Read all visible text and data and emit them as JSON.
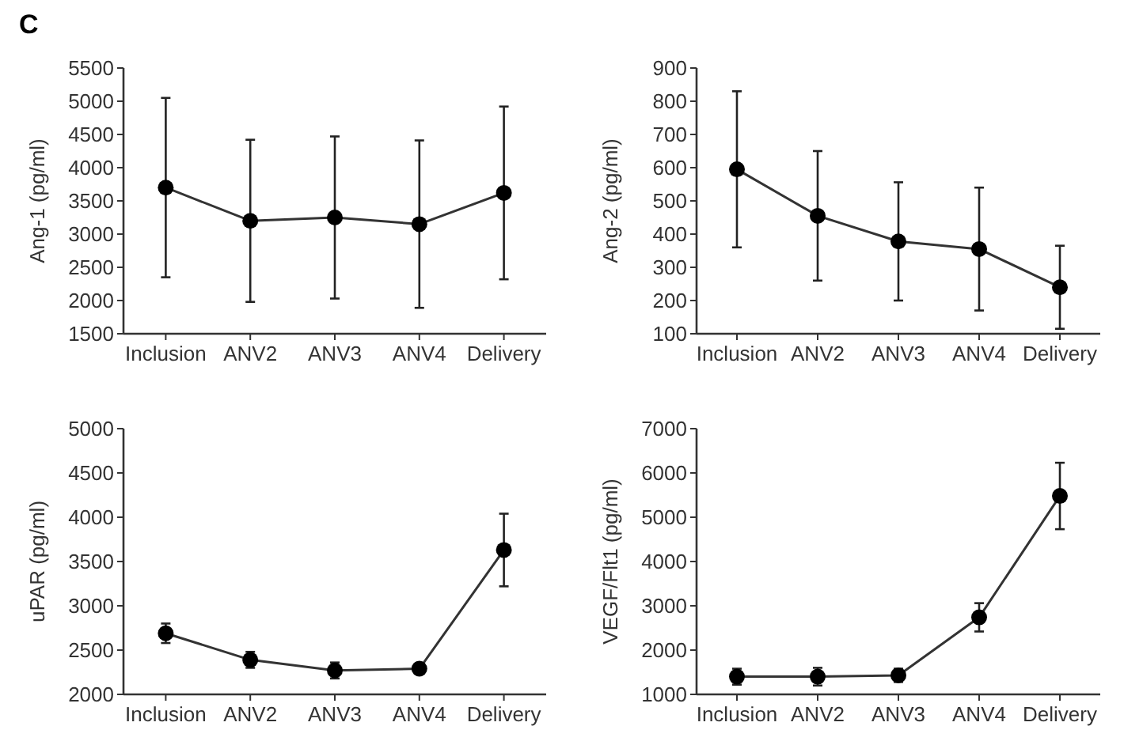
{
  "chart_data": [
    {
      "type": "line",
      "ylabel": "Ang-1 (pg/ml)",
      "annotations": [
        "C"
      ],
      "categories": [
        "Inclusion",
        "ANV2",
        "ANV3",
        "ANV4",
        "Delivery"
      ],
      "series": [
        {
          "color": "#333333",
          "values": [
            3700,
            3200,
            3250,
            3150,
            3620
          ],
          "errors": [
            1350,
            1220,
            1220,
            1260,
            1300
          ]
        }
      ],
      "ylim": [
        1500,
        5500
      ],
      "yticks": [
        1500,
        2000,
        2500,
        3000,
        3500,
        4000,
        4500,
        5000,
        5500
      ],
      "marker": "circle",
      "grid": false
    },
    {
      "type": "line",
      "ylabel": "Ang-2 (pg/ml)",
      "categories": [
        "Inclusion",
        "ANV2",
        "ANV3",
        "ANV4",
        "Delivery"
      ],
      "series": [
        {
          "color": "#333333",
          "values": [
            595,
            455,
            378,
            355,
            240
          ],
          "errors": [
            235,
            195,
            178,
            185,
            125
          ]
        }
      ],
      "ylim": [
        100,
        900
      ],
      "yticks": [
        100,
        200,
        300,
        400,
        500,
        600,
        700,
        800,
        900
      ],
      "marker": "circle",
      "grid": false
    },
    {
      "type": "line",
      "ylabel": "uPAR (pg/ml)",
      "categories": [
        "Inclusion",
        "ANV2",
        "ANV3",
        "ANV4",
        "Delivery"
      ],
      "series": [
        {
          "color": "#333333",
          "values": [
            2690,
            2390,
            2270,
            2290,
            3630
          ],
          "errors": [
            110,
            90,
            90,
            60,
            410
          ]
        }
      ],
      "ylim": [
        2000,
        5000
      ],
      "yticks": [
        2000,
        2500,
        3000,
        3500,
        4000,
        4500,
        5000
      ],
      "marker": "circle",
      "grid": false
    },
    {
      "type": "line",
      "ylabel": "VEGF/Flt1 (pg/ml)",
      "categories": [
        "Inclusion",
        "ANV2",
        "ANV3",
        "ANV4",
        "Delivery"
      ],
      "series": [
        {
          "color": "#333333",
          "values": [
            1400,
            1400,
            1430,
            2740,
            5480
          ],
          "errors": [
            180,
            200,
            150,
            320,
            750
          ]
        }
      ],
      "ylim": [
        1000,
        7000
      ],
      "yticks": [
        1000,
        2000,
        3000,
        4000,
        5000,
        6000,
        7000
      ],
      "marker": "circle",
      "grid": false
    }
  ]
}
